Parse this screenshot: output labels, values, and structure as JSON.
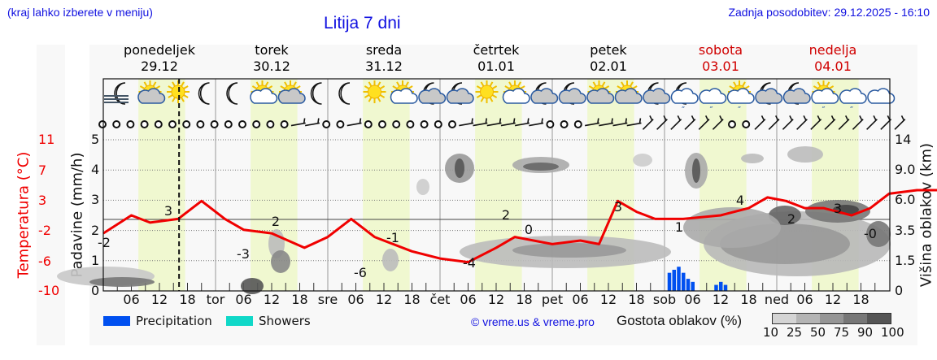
{
  "header": {
    "region_hint": "(kraj lahko izberete v meniju)",
    "title": "Litija 7 dni",
    "last_update": "Zadnja posodobitev: 29.12.2025 - 16:10"
  },
  "days": [
    {
      "name": "ponedeljek",
      "date": "29.12",
      "weekend": false
    },
    {
      "name": "torek",
      "date": "30.12",
      "weekend": false
    },
    {
      "name": "sreda",
      "date": "31.12",
      "weekend": false
    },
    {
      "name": "četrtek",
      "date": "01.01",
      "weekend": false
    },
    {
      "name": "petek",
      "date": "02.01",
      "weekend": false
    },
    {
      "name": "sobota",
      "date": "03.01",
      "weekend": true
    },
    {
      "name": "nedelja",
      "date": "04.01",
      "weekend": true
    }
  ],
  "axes": {
    "left_temp_label": "Temperatura (°C)",
    "left_temp_ticks": [
      "11",
      "7",
      "3",
      "-2",
      "-6",
      "-10"
    ],
    "left_precip_label": "Padavine (mm/h)",
    "left_precip_ticks": [
      "5",
      "4",
      "3",
      "2",
      "1",
      "0"
    ],
    "right_label": "Višina oblakov (km)",
    "right_ticks": [
      "14",
      "9.0",
      "6.0",
      "3.5",
      "1.5",
      "0"
    ],
    "x_ticks": [
      "06",
      "12",
      "18",
      "tor",
      "06",
      "12",
      "18",
      "sre",
      "06",
      "12",
      "18",
      "čet",
      "06",
      "12",
      "18",
      "pet",
      "06",
      "12",
      "18",
      "sob",
      "06",
      "12",
      "18",
      "ned",
      "06",
      "12",
      "18"
    ]
  },
  "legend": {
    "precipitation": "Precipitation",
    "showers": "Showers",
    "copyright": "© vreme.us & vreme.pro",
    "cloud_density_label": "Gostota oblakov (%)",
    "cloud_density_ticks": [
      "10",
      "25",
      "50",
      "75",
      "90",
      "100"
    ]
  },
  "colors": {
    "temperature": "#f00000",
    "precipitation": "#0050f0",
    "showers": "#10d8c8",
    "daylight": "#f0f8d0",
    "link": "#1010e0",
    "weekend": "#d00000"
  },
  "weather_icons": [
    "fog-moon-icon",
    "sun-cloud-icon",
    "sun-icon",
    "moon-icon",
    "moon-icon",
    "sun-small-cloud-icon",
    "sun-cloud-icon",
    "moon-icon",
    "moon-icon",
    "sun-icon",
    "sun-small-cloud-icon",
    "moon-cloud-icon",
    "moon-cloud-icon",
    "sun-icon",
    "sun-small-cloud-icon",
    "moon-cloud-icon",
    "moon-cloud-icon",
    "sun-cloud-icon",
    "sun-cloud-icon",
    "moon-cloud-icon",
    "moon-cloud-rain-icon",
    "cloud-rain-icon",
    "sun-cloud-rain-icon",
    "moon-cloud-icon",
    "moon-cloud-icon",
    "sun-cloud-rain-icon",
    "cloud-rain-icon",
    "cloud-icon"
  ],
  "chart_data": {
    "type": "line",
    "title": "Litija 7 dni",
    "xlabel": "",
    "ylabel": "Temperatura (°C) / Padavine (mm/h)",
    "y2label": "Višina oblakov (km)",
    "grid": true,
    "x_unit": "hours from 29.12 00:00",
    "series": [
      {
        "name": "Temperatura",
        "axis": "left_temp",
        "unit": "°C",
        "x": [
          0,
          6,
          10,
          16,
          21,
          26,
          30,
          36,
          43,
          48,
          53,
          58,
          66,
          72,
          78,
          84,
          88,
          96,
          102,
          106,
          110,
          114,
          118,
          124,
          132,
          138,
          142,
          146,
          150,
          154,
          160,
          164,
          168,
          174,
          180,
          186,
          190,
          194,
          198,
          204,
          210,
          216,
          222,
          230,
          236,
          240,
          246,
          250,
          256,
          262,
          266
        ],
        "values": [
          -2,
          0.5,
          -0.5,
          0,
          2.5,
          0,
          -1.5,
          -2,
          -4,
          -2.5,
          0,
          -2.5,
          -4.5,
          -5.5,
          -6,
          -4,
          -2.5,
          -3.5,
          -3,
          -3.5,
          2.5,
          1,
          0,
          0,
          0.5,
          1.5,
          3,
          2.5,
          1.5,
          1.5,
          0.5,
          1.5,
          3.5,
          4,
          4,
          6,
          4,
          2,
          2,
          3,
          2,
          3,
          1.5,
          0.5,
          1.5,
          2.5,
          3,
          2.5,
          0,
          0.5,
          1.5
        ]
      },
      {
        "name": "Precipitation",
        "axis": "left_precip",
        "unit": "mm/h",
        "type": "bar",
        "x": [
          121,
          122,
          123,
          124,
          125,
          126,
          131,
          132,
          133,
          180,
          182
        ],
        "values": [
          0.6,
          0.7,
          0.8,
          0.6,
          0.4,
          0.3,
          0.2,
          0.3,
          0.2,
          0.4,
          1.6
        ]
      }
    ],
    "point_labels": [
      {
        "x": 0,
        "label": "-2"
      },
      {
        "x": 15,
        "label": "3"
      },
      {
        "x": 30,
        "label": "-3"
      },
      {
        "x": 38,
        "label": "2"
      },
      {
        "x": 54,
        "label": "-6"
      },
      {
        "x": 62,
        "label": "-1"
      },
      {
        "x": 78,
        "label": "-4"
      },
      {
        "x": 86,
        "label": "2"
      },
      {
        "x": 90,
        "label": "0"
      },
      {
        "x": 110,
        "label": "3"
      },
      {
        "x": 125,
        "label": "1"
      },
      {
        "x": 137,
        "label": "4"
      },
      {
        "x": 150,
        "label": "2"
      },
      {
        "x": 160,
        "label": "3"
      },
      {
        "x": 165,
        "label": "-0"
      }
    ],
    "temp_range": [
      -10,
      11
    ],
    "precip_range": [
      0,
      5
    ],
    "cloud_height_ticks": [
      0,
      1.5,
      3.5,
      6.0,
      9.0,
      14
    ],
    "now_marker_hour": 16.2,
    "legend": [
      "Precipitation",
      "Showers"
    ],
    "legend_position": "bottom"
  }
}
